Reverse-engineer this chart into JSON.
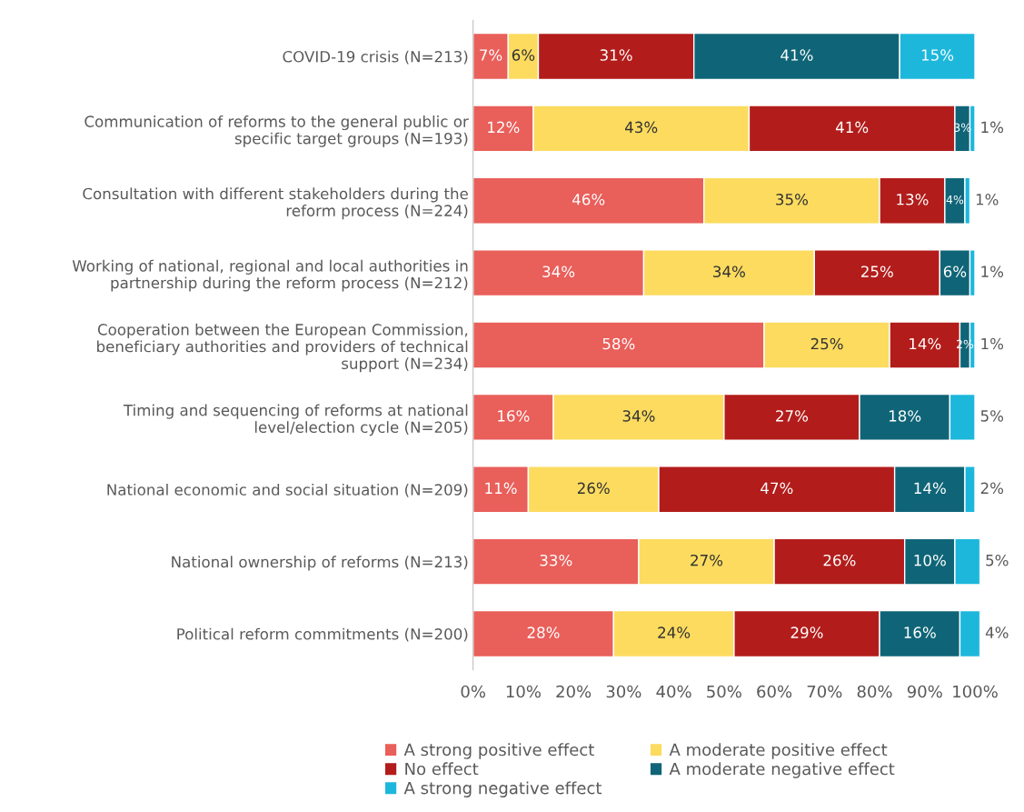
{
  "chart_data": {
    "type": "bar",
    "orientation": "horizontal",
    "stacked": true,
    "categories": [
      "COVID-19 crisis (N=213)",
      "Communication of reforms to the general public or\nspecific target groups (N=193)",
      "Consultation with different stakeholders during the\nreform process (N=224)",
      "Working of national, regional and local authorities in\npartnership during the reform process (N=212)",
      "Cooperation between the European Commission,\nbeneficiary authorities and providers of technical\nsupport (N=234)",
      "Timing and sequencing of reforms at national\nlevel/election cycle (N=205)",
      "National economic and social situation (N=209)",
      "National ownership of reforms (N=213)",
      "Political reform commitments (N=200)"
    ],
    "series": [
      {
        "name": "A strong positive effect",
        "color": "#e95f5a",
        "values": [
          7,
          12,
          46,
          34,
          58,
          16,
          11,
          33,
          28
        ],
        "value_labels": [
          "7%",
          "12%",
          "46%",
          "34%",
          "58%",
          "16%",
          "11%",
          "33%",
          "28%"
        ]
      },
      {
        "name": "A moderate positive effect",
        "color": "#fcdb5f",
        "values": [
          6,
          43,
          35,
          34,
          25,
          34,
          26,
          27,
          24
        ],
        "value_labels": [
          "6%",
          "43%",
          "35%",
          "34%",
          "25%",
          "34%",
          "26%",
          "27%",
          "24%"
        ]
      },
      {
        "name": "No effect",
        "color": "#b21d1b",
        "values": [
          31,
          41,
          13,
          25,
          14,
          27,
          47,
          26,
          29
        ],
        "value_labels": [
          "31%",
          "41%",
          "13%",
          "25%",
          "14%",
          "27%",
          "47%",
          "26%",
          "29%"
        ]
      },
      {
        "name": "A moderate negative effect",
        "color": "#0f6577",
        "values": [
          41,
          3,
          4,
          6,
          2,
          18,
          14,
          10,
          16
        ],
        "value_labels": [
          "41%",
          "3%",
          "4%",
          "6%",
          "2%",
          "18%",
          "14%",
          "10%",
          "16%"
        ]
      },
      {
        "name": "A strong negative effect",
        "color": "#1db7dc",
        "values": [
          15,
          1,
          1,
          1,
          1,
          5,
          2,
          5,
          4
        ],
        "value_labels": [
          "15%",
          "1%",
          "1%",
          "1%",
          "1%",
          "5%",
          "2%",
          "5%",
          "4%"
        ]
      }
    ],
    "xlim": [
      0,
      101
    ],
    "xticks": [
      {
        "value": 0,
        "label": "0%"
      },
      {
        "value": 10,
        "label": "10%"
      },
      {
        "value": 20,
        "label": "20%"
      },
      {
        "value": 30,
        "label": "30%"
      },
      {
        "value": 40,
        "label": "40%"
      },
      {
        "value": 50,
        "label": "50%"
      },
      {
        "value": 60,
        "label": "60%"
      },
      {
        "value": 70,
        "label": "70%"
      },
      {
        "value": 80,
        "label": "80%"
      },
      {
        "value": 90,
        "label": "90%"
      },
      {
        "value": 100,
        "label": "100%"
      }
    ],
    "grid": false,
    "legend": "bottom"
  }
}
